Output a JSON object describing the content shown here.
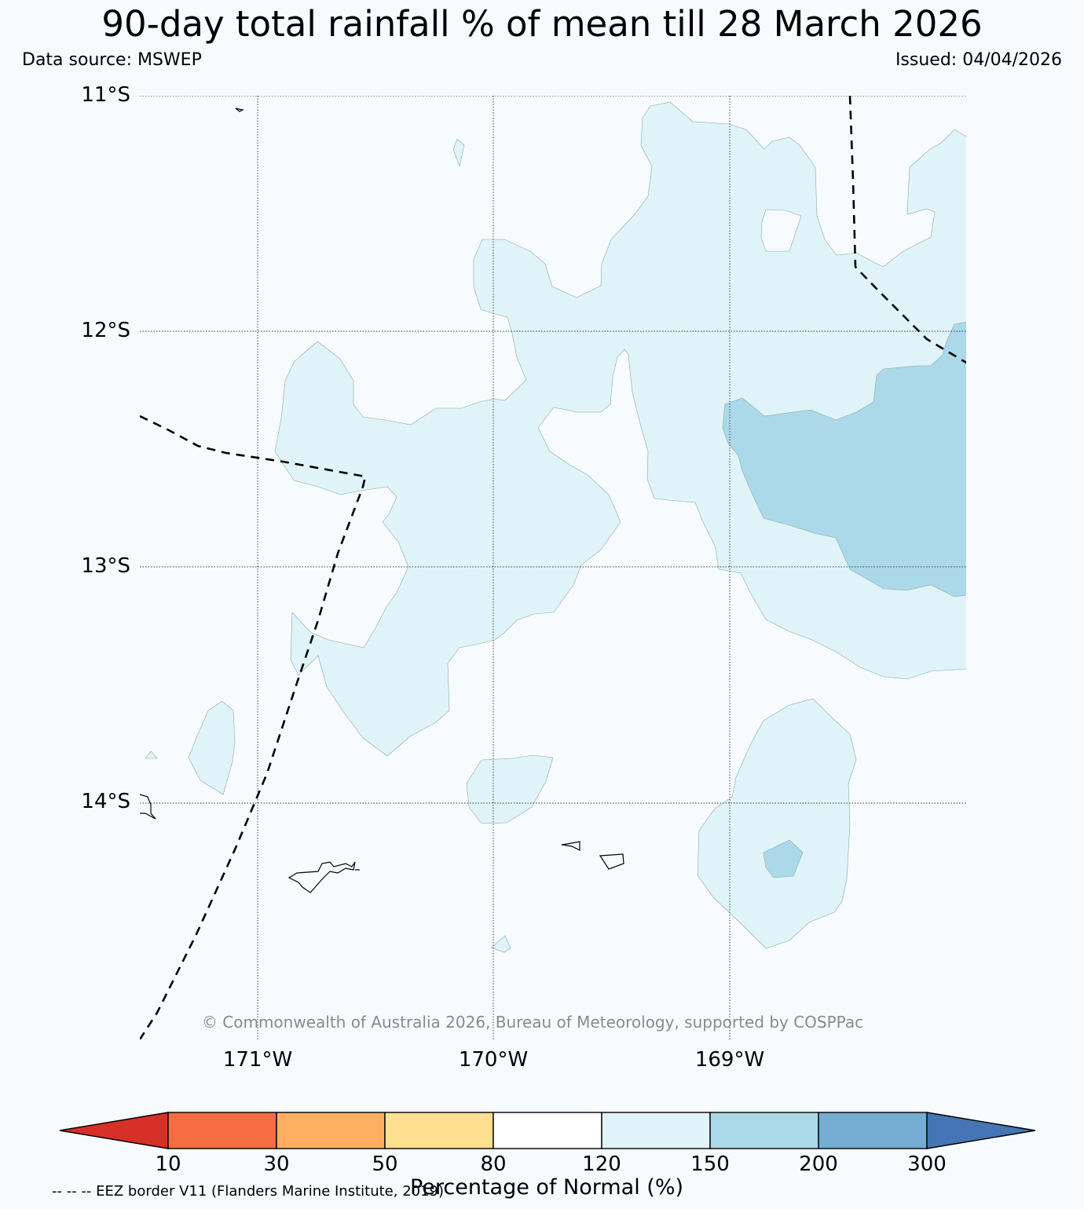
{
  "title": "90-day total rainfall % of mean till 28 March 2026",
  "data_source": "Data source: MSWEP",
  "issued": "Issued: 04/04/2026",
  "copyright": "© Commonwealth of Australia 2026, Bureau of Meteorology, supported by COSPPac",
  "map": {
    "lat_labels": [
      "11°S",
      "12°S",
      "13°S",
      "14°S"
    ],
    "lon_labels": [
      "171°W",
      "170°W",
      "169°W"
    ],
    "fill_colors": {
      "120-150": "#e0f3f8",
      "150-200": "#abd9e9",
      "80-120": "#f7fbfd"
    }
  },
  "colorbar": {
    "label": "Percentage of Normal (%)",
    "ticks": [
      "10",
      "30",
      "50",
      "80",
      "120",
      "150",
      "200",
      "300"
    ],
    "colors": [
      "#d73027",
      "#f46d43",
      "#fdae61",
      "#fee090",
      "#ffffff",
      "#e0f3f8",
      "#abd9e9",
      "#74add1",
      "#4575b4"
    ]
  },
  "legend_note": "-- -- -- EEZ border V11 (Flanders Marine Institute, 2019)"
}
